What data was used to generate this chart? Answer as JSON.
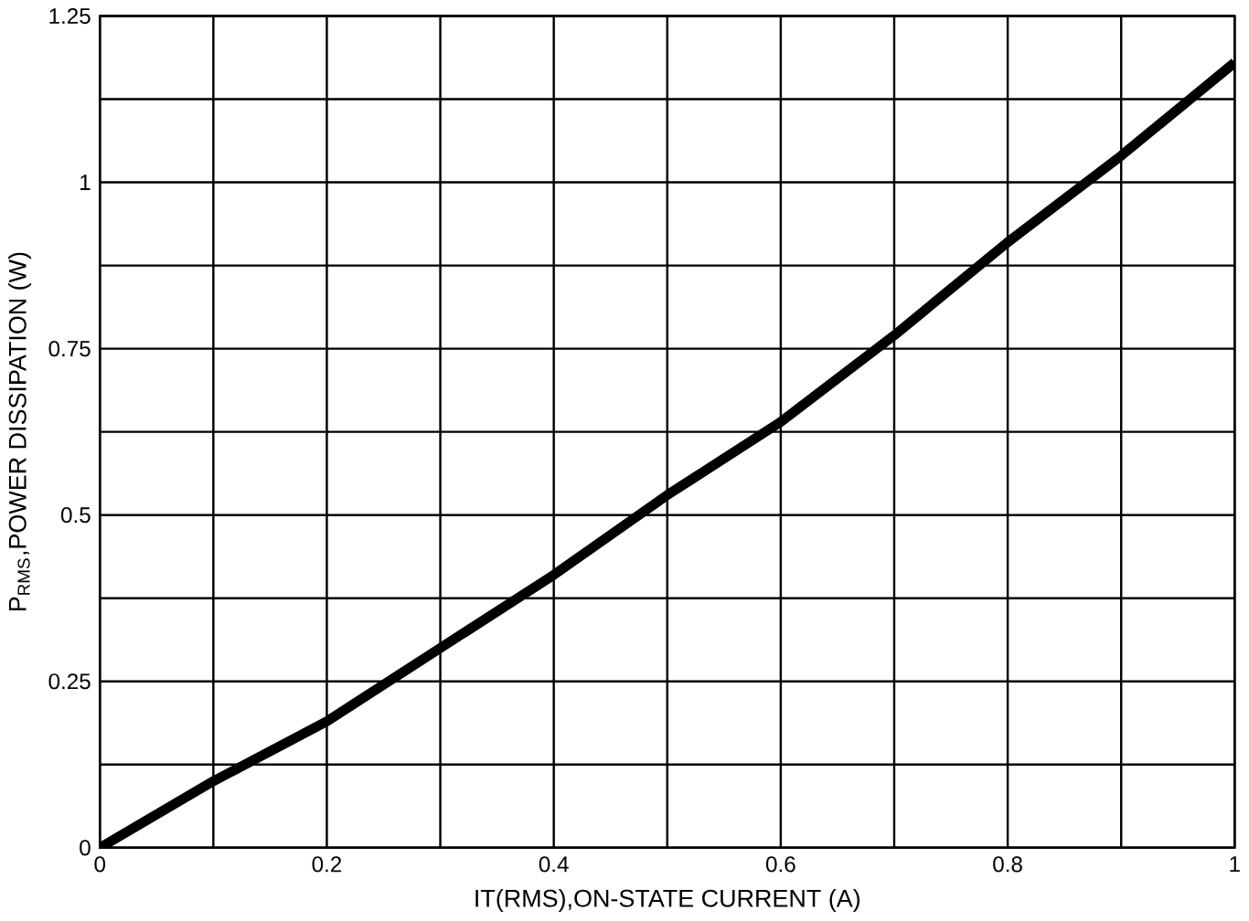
{
  "chart_data": {
    "type": "line",
    "xlabel": "IT(RMS),ON-STATE CURRENT (A)",
    "ylabel": "P$_{RMS}$,POWER DISSIPATION (W)",
    "x": [
      0,
      0.1,
      0.2,
      0.3,
      0.4,
      0.5,
      0.6,
      0.7,
      0.8,
      0.9,
      1.0
    ],
    "series": [
      {
        "color": "#000000",
        "values": [
          0,
          0.1,
          0.19,
          0.3,
          0.41,
          0.53,
          0.64,
          0.77,
          0.91,
          1.04,
          1.18
        ]
      }
    ],
    "xlim": [
      0,
      1
    ],
    "ylim": [
      0,
      1.25
    ],
    "xticks": [
      0,
      {
        "value": 0.1,
        "label": null
      },
      0.2,
      {
        "value": 0.3,
        "label": null
      },
      0.4,
      {
        "value": 0.5,
        "label": null
      },
      0.6,
      {
        "value": 0.7,
        "label": null
      },
      0.8,
      {
        "value": 0.9,
        "label": null
      },
      1
    ],
    "yticks": [
      0,
      {
        "value": 0.125,
        "label": null
      },
      0.25,
      {
        "value": 0.375,
        "label": null
      },
      0.5,
      {
        "value": 0.625,
        "label": null
      },
      0.75,
      {
        "value": 0.875,
        "label": null
      },
      1,
      {
        "value": 1.125,
        "label": null
      },
      1.25
    ],
    "grid": true,
    "marker": "none",
    "line_style": "solid"
  }
}
